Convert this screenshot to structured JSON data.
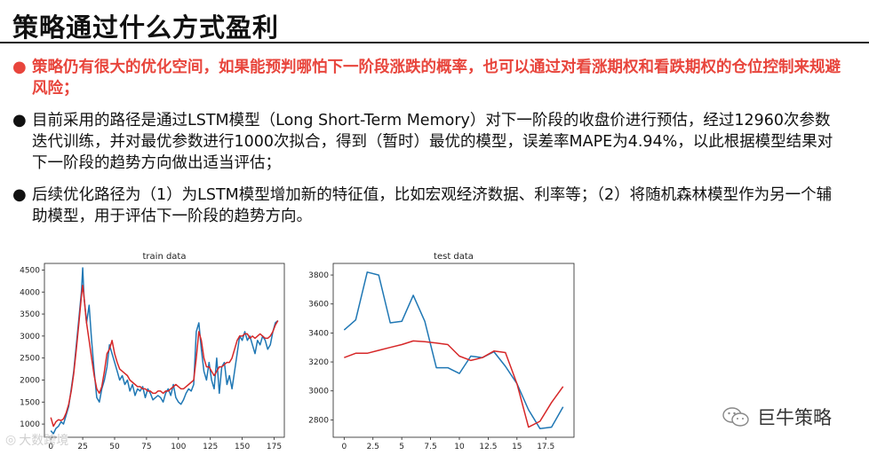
{
  "page": {
    "title": "策略通过什么方式盈利",
    "bullets": [
      {
        "text": "策略仍有很大的优化空间，如果能预判哪怕下一阶段涨跌的概率，也可以通过对看涨期权和看跌期权的仓位控制来规避风险；",
        "color": "#e8453c"
      },
      {
        "text": "目前采用的路径是通过LSTM模型（Long Short-Term Memory）对下一阶段的收盘价进行预估，经过12960次参数迭代训练，并对最优参数进行1000次拟合，得到（暂时）最优的模型，误差率MAPE为4.94%，以此根据模型结果对下一阶段的趋势方向做出适当评估；",
        "color": "#111111"
      },
      {
        "text": "后续优化路径为（1）为LSTM模型增加新的特征值，比如宏观经济数据、利率等；（2）将随机森林模型作为另一个辅助模型，用于评估下一阶段的趋势方向。",
        "color": "#111111"
      }
    ],
    "watermark_left": "大数跨境",
    "watermark_right": "巨牛策略",
    "watermark_left_icon": "target-icon",
    "watermark_right_icon": "wechat-icon"
  },
  "chart_data": [
    {
      "type": "line",
      "title": "train data",
      "xlim": [
        -5,
        183
      ],
      "ylim": [
        700,
        4650
      ],
      "xticks": [
        0,
        25,
        50,
        75,
        100,
        125,
        150,
        175
      ],
      "yticks": [
        1000,
        1500,
        2000,
        2500,
        3000,
        3500,
        4000,
        4500
      ],
      "series": [
        {
          "color": "#1f77b4",
          "x": [
            0,
            2,
            4,
            6,
            8,
            10,
            12,
            14,
            16,
            18,
            20,
            22,
            24,
            25,
            26,
            28,
            30,
            32,
            34,
            36,
            38,
            40,
            42,
            44,
            46,
            48,
            50,
            52,
            54,
            56,
            58,
            60,
            62,
            64,
            66,
            68,
            70,
            72,
            74,
            76,
            78,
            80,
            82,
            84,
            86,
            88,
            90,
            92,
            94,
            96,
            98,
            100,
            102,
            104,
            106,
            108,
            110,
            112,
            114,
            116,
            118,
            120,
            122,
            124,
            126,
            128,
            130,
            132,
            134,
            136,
            138,
            140,
            142,
            144,
            146,
            148,
            150,
            152,
            154,
            156,
            158,
            160,
            162,
            164,
            166,
            168,
            170,
            172,
            174,
            176,
            178
          ],
          "values": [
            850,
            780,
            900,
            950,
            1050,
            1000,
            1200,
            1400,
            1800,
            2200,
            2800,
            3400,
            4000,
            4550,
            3900,
            3300,
            3700,
            2900,
            2200,
            1600,
            1500,
            1800,
            2000,
            2300,
            2800,
            2600,
            2400,
            2200,
            2000,
            2100,
            1900,
            2000,
            1750,
            1900,
            1650,
            1800,
            1750,
            1850,
            1600,
            1800,
            1700,
            1550,
            1600,
            1650,
            1600,
            1500,
            1700,
            1800,
            1650,
            1900,
            1600,
            1500,
            1450,
            1550,
            1700,
            1800,
            1750,
            1900,
            3100,
            3300,
            2700,
            2200,
            2000,
            2400,
            2000,
            1800,
            2500,
            1700,
            2300,
            2400,
            1900,
            2100,
            1800,
            2200,
            2600,
            3000,
            2900,
            3100,
            2900,
            3000,
            2800,
            2600,
            2900,
            2800,
            3000,
            2900,
            2700,
            2800,
            3100,
            3300,
            3350
          ]
        },
        {
          "color": "#d62728",
          "x": [
            0,
            2,
            4,
            6,
            8,
            10,
            12,
            14,
            16,
            18,
            20,
            22,
            24,
            25,
            26,
            28,
            30,
            32,
            34,
            36,
            38,
            40,
            42,
            44,
            46,
            48,
            50,
            52,
            54,
            56,
            58,
            60,
            62,
            64,
            66,
            68,
            70,
            72,
            74,
            76,
            78,
            80,
            82,
            84,
            86,
            88,
            90,
            92,
            94,
            96,
            98,
            100,
            102,
            104,
            106,
            108,
            110,
            112,
            114,
            116,
            118,
            120,
            122,
            124,
            126,
            128,
            130,
            132,
            134,
            136,
            138,
            140,
            142,
            144,
            146,
            148,
            150,
            152,
            154,
            156,
            158,
            160,
            162,
            164,
            166,
            168,
            170,
            172,
            174,
            176,
            178
          ],
          "values": [
            1150,
            950,
            1050,
            1100,
            1080,
            1120,
            1250,
            1450,
            1750,
            2150,
            2700,
            3300,
            3900,
            4150,
            3900,
            3300,
            2900,
            2500,
            2100,
            1800,
            1700,
            1850,
            2200,
            2600,
            2700,
            2900,
            2600,
            2400,
            2250,
            2200,
            2150,
            2100,
            2000,
            1950,
            1900,
            1850,
            1850,
            1800,
            1800,
            1750,
            1750,
            1700,
            1700,
            1750,
            1750,
            1700,
            1750,
            1750,
            1800,
            1850,
            1900,
            1850,
            1800,
            1800,
            1850,
            1900,
            1950,
            2000,
            2500,
            3100,
            2900,
            2500,
            2300,
            2300,
            2200,
            2100,
            2200,
            2300,
            2300,
            2350,
            2400,
            2400,
            2500,
            2700,
            2900,
            3000,
            3000,
            3050,
            3050,
            2950,
            3000,
            2950,
            3000,
            3050,
            3000,
            2950,
            2950,
            3000,
            3100,
            3250,
            3350
          ]
        }
      ]
    },
    {
      "type": "line",
      "title": "test data",
      "xlim": [
        -0.95,
        19.95
      ],
      "ylim": [
        2680,
        3880
      ],
      "xticks": [
        0.0,
        2.5,
        5.0,
        7.5,
        10.0,
        12.5,
        15.0,
        17.5
      ],
      "yticks": [
        2800,
        3000,
        3200,
        3400,
        3600,
        3800
      ],
      "series": [
        {
          "color": "#1f77b4",
          "x": [
            0,
            1,
            2,
            3,
            4,
            5,
            6,
            7,
            8,
            9,
            10,
            11,
            12,
            13,
            14,
            15,
            16,
            17,
            18,
            19
          ],
          "values": [
            3420,
            3490,
            3820,
            3800,
            3470,
            3480,
            3660,
            3480,
            3160,
            3160,
            3120,
            3240,
            3230,
            3270,
            3170,
            3050,
            2870,
            2740,
            2750,
            2890
          ]
        },
        {
          "color": "#d62728",
          "x": [
            0,
            1,
            2,
            3,
            4,
            5,
            6,
            7,
            8,
            9,
            10,
            11,
            12,
            13,
            14,
            15,
            16,
            17,
            18,
            19
          ],
          "values": [
            3230,
            3260,
            3260,
            3280,
            3300,
            3320,
            3345,
            3340,
            3330,
            3320,
            3240,
            3210,
            3230,
            3275,
            3265,
            3050,
            2750,
            2790,
            2920,
            3030
          ]
        }
      ]
    }
  ]
}
